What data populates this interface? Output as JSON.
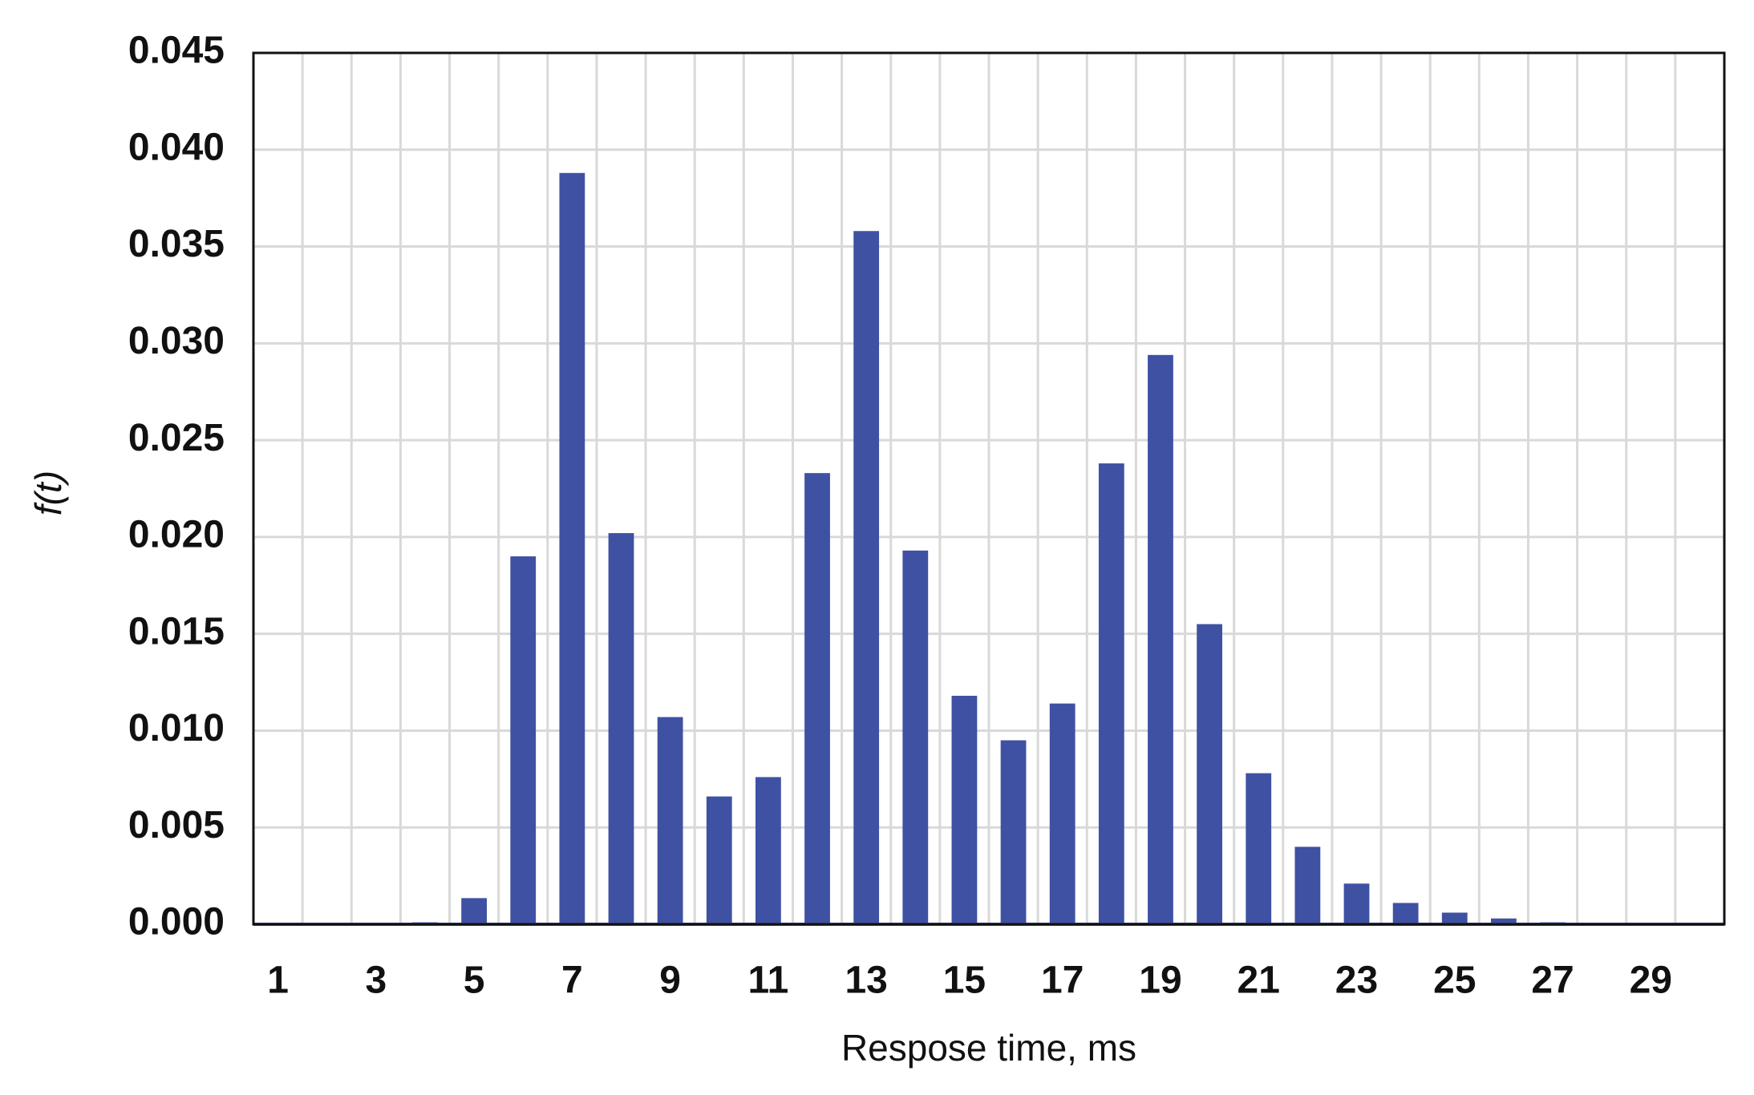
{
  "chart_data": {
    "type": "bar",
    "x_label": "Respose time, ms",
    "y_label": "f(t)",
    "categories": [
      "1",
      null,
      "3",
      null,
      "5",
      null,
      "7",
      null,
      "9",
      null,
      "11",
      null,
      "13",
      null,
      "15",
      null,
      "17",
      null,
      "19",
      null,
      "21",
      null,
      "23",
      null,
      "25",
      null,
      "27",
      null,
      "29",
      null
    ],
    "values": [
      0,
      0,
      0,
      0.0001,
      0.00135,
      0.019,
      0.0388,
      0.0202,
      0.0107,
      0.0066,
      0.0076,
      0.0233,
      0.0358,
      0.0193,
      0.0118,
      0.0095,
      0.0114,
      0.0238,
      0.0294,
      0.0155,
      0.0078,
      0.004,
      0.0021,
      0.0011,
      0.0006,
      0.0003,
      0.0001,
      0,
      0,
      0
    ],
    "color": "#3f51a3",
    "ylim": [
      0,
      0.045
    ],
    "yticks": [
      {
        "value": 0,
        "label": "0.000"
      },
      0.005,
      {
        "value": 0.01,
        "label": "0.010"
      },
      0.015,
      {
        "value": 0.02,
        "label": "0.020"
      },
      0.025,
      {
        "value": 0.03,
        "label": "0.030"
      },
      0.035,
      {
        "value": 0.04,
        "label": "0.040"
      },
      0.045
    ],
    "grid": true
  }
}
